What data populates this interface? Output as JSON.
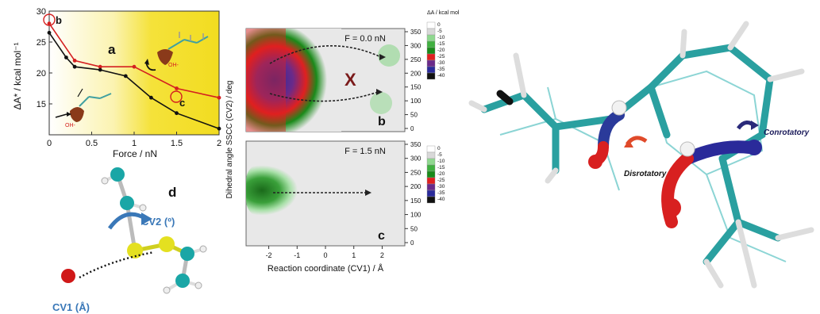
{
  "panel_a": {
    "letter": "a",
    "ylabel": "ΔA* / kcal mol⁻¹",
    "xlabel": "Force / nN",
    "point_label_b": "b",
    "point_label_c": "c",
    "oh_label_1": "OH-",
    "oh_label_2": "OH-"
  },
  "panel_b": {
    "force_label": "F = 0.0 nN",
    "x_mark": "X",
    "letter": "b"
  },
  "panel_c": {
    "force_label": "F = 1.5 nN",
    "letter": "c",
    "xlabel": "Reaction coordinate (CV1) / Å",
    "ylabel": "Dihedral angle SSCC (CV2) / deg"
  },
  "colorbar": {
    "title": "ΔA / kcal mol",
    "ticks": [
      "0",
      "-5",
      "-10",
      "-15",
      "-20",
      "-25",
      "-30",
      "-35",
      "-40"
    ],
    "colors": [
      "#ffffff",
      "#d8d8d8",
      "#8fd88f",
      "#40b040",
      "#1a8a1a",
      "#e02020",
      "#6a2a8a",
      "#2a2a9a",
      "#111111"
    ]
  },
  "panel_d": {
    "letter": "d",
    "cv2_label": "CV2 (º)",
    "cv1_label": "CV1 (Å)"
  },
  "molecule": {
    "conrotatory_label": "Conrotatory",
    "disrotatory_label": "Disrotatory"
  },
  "chart_data": [
    {
      "type": "line",
      "xlabel": "Force / nN",
      "ylabel": "ΔA* / kcal mol⁻¹",
      "xlim": [
        0,
        2
      ],
      "ylim": [
        10,
        30
      ],
      "xticks": [
        "0",
        "0.5",
        "1",
        "1.5",
        "2"
      ],
      "yticks": [
        "15",
        "20",
        "25",
        "30"
      ],
      "series": [
        {
          "color": "#d42020",
          "x": [
            0,
            0.3,
            0.6,
            1.0,
            1.5,
            2.0
          ],
          "y": [
            28,
            22,
            21,
            21,
            17.5,
            16
          ]
        },
        {
          "color": "#111111",
          "x": [
            0,
            0.2,
            0.3,
            0.6,
            0.9,
            1.2,
            1.5,
            2.0
          ],
          "y": [
            26.5,
            22.5,
            21,
            20.5,
            19.5,
            16,
            13.5,
            11
          ]
        }
      ]
    },
    {
      "type": "heatmap",
      "title": "F = 0.0 nN",
      "ylim": [
        0,
        350
      ],
      "yticks": [
        "0",
        "50",
        "100",
        "150",
        "200",
        "250",
        "300",
        "350"
      ]
    },
    {
      "type": "heatmap",
      "title": "F = 1.5 nN",
      "xlabel": "Reaction coordinate (CV1) / Å",
      "ylabel": "Dihedral angle SSCC (CV2) / deg",
      "xlim": [
        -2.8,
        2.8
      ],
      "ylim": [
        0,
        350
      ],
      "xticks": [
        "-2",
        "-1",
        "0",
        "1",
        "2"
      ],
      "yticks": [
        "0",
        "50",
        "100",
        "150",
        "200",
        "250",
        "300",
        "350"
      ]
    }
  ]
}
